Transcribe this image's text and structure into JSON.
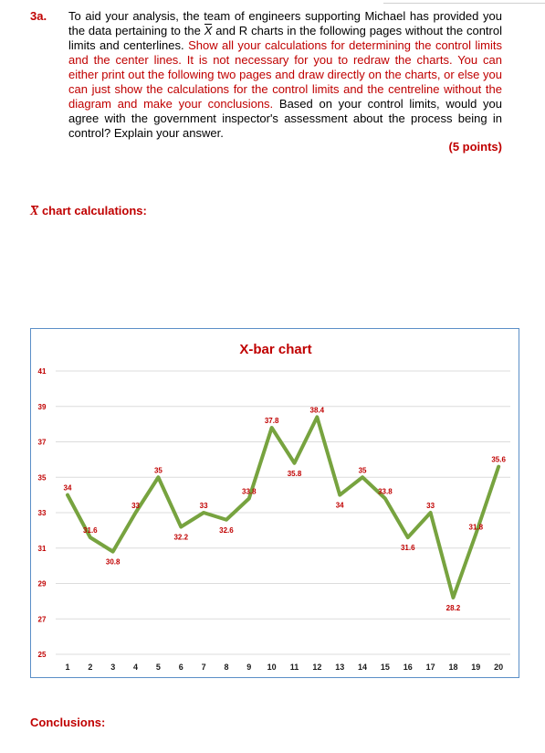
{
  "question": {
    "number": "3a.",
    "text_part1": "To aid your analysis, the team of engineers supporting Michael has provided you the data pertaining to the ",
    "xbar_symbol": "X",
    "text_part2": " and R charts in the following pages without the control limits and centerlines. ",
    "text_red": "Show all your calculations for determining the control limits and the center lines. It is not necessary for you to redraw the charts. You can either print out the following two pages and draw directly on the charts, or else you can just show the calculations for the control limits and the centreline without the diagram and make your conclusions.",
    "text_part3": " Based on your control limits, would you agree with the government inspector's assessment about the process being in control? Explain your answer.",
    "points": "(5 points)"
  },
  "calc_heading": {
    "symbol": "X",
    "label": " chart calculations:"
  },
  "conclusions_label": "Conclusions:",
  "colors": {
    "accent_red": "#c00000",
    "line_green": "#77a33f",
    "chart_border": "#5b8fc7"
  },
  "chart_data": {
    "type": "line",
    "title": "X-bar chart",
    "x": [
      1,
      2,
      3,
      4,
      5,
      6,
      7,
      8,
      9,
      10,
      11,
      12,
      13,
      14,
      15,
      16,
      17,
      18,
      19,
      20
    ],
    "values": [
      34,
      31.6,
      30.8,
      33,
      35,
      32.2,
      33,
      32.6,
      33.8,
      37.8,
      35.8,
      38.4,
      34,
      35,
      33.8,
      31.6,
      33,
      28.2,
      31.8,
      35.6
    ],
    "ylim": [
      25,
      41
    ],
    "yticks": [
      25,
      27,
      29,
      31,
      33,
      35,
      37,
      39,
      41
    ],
    "grid": true,
    "xlabel": "",
    "ylabel": ""
  }
}
